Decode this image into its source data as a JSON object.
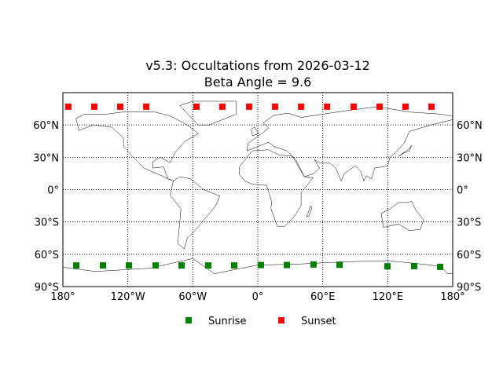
{
  "chart_data": {
    "type": "scatter",
    "title": "v5.3: Occultations from 2026-03-12",
    "subtitle": "Beta Angle = 9.6",
    "projection": "cylindrical world map with coastlines and country borders",
    "xlim": [
      -180,
      180
    ],
    "ylim": [
      -90,
      90
    ],
    "grid": true,
    "x_ticks": [
      -180,
      -120,
      -60,
      0,
      60,
      120,
      180
    ],
    "x_tick_labels": [
      "180°",
      "120°W",
      "60°W",
      "0°",
      "60°E",
      "120°E",
      "180°"
    ],
    "y_ticks": [
      -90,
      -60,
      -30,
      0,
      30,
      60
    ],
    "y_tick_labels": [
      "90°S",
      "60°S",
      "30°S",
      "0°",
      "30°N",
      "60°N"
    ],
    "legend_position": "bottom-center",
    "series": [
      {
        "name": "Sunrise",
        "color": "#008000",
        "marker": "square",
        "lon": [
          -167.6,
          -143,
          -119,
          -94.3,
          -70.4,
          -45.7,
          -21.8,
          2.9,
          26.9,
          51.5,
          75.5,
          119.7,
          144.4,
          168.4
        ],
        "lat": [
          -70.4,
          -70.4,
          -70.4,
          -70.4,
          -70.4,
          -70.4,
          -70.4,
          -70,
          -70,
          -69.5,
          -69.7,
          -71.2,
          -71,
          -71.7
        ]
      },
      {
        "name": "Sunset",
        "color": "#ff0000",
        "marker": "square",
        "lon": [
          -175,
          -151,
          -127,
          -103,
          -56.6,
          -32.7,
          -8,
          16,
          40,
          64,
          88.5,
          112.5,
          136.4,
          160.4
        ],
        "lat": [
          77,
          77,
          77,
          77,
          77,
          77,
          77,
          77,
          77,
          77,
          77,
          77,
          77,
          77
        ]
      }
    ]
  }
}
